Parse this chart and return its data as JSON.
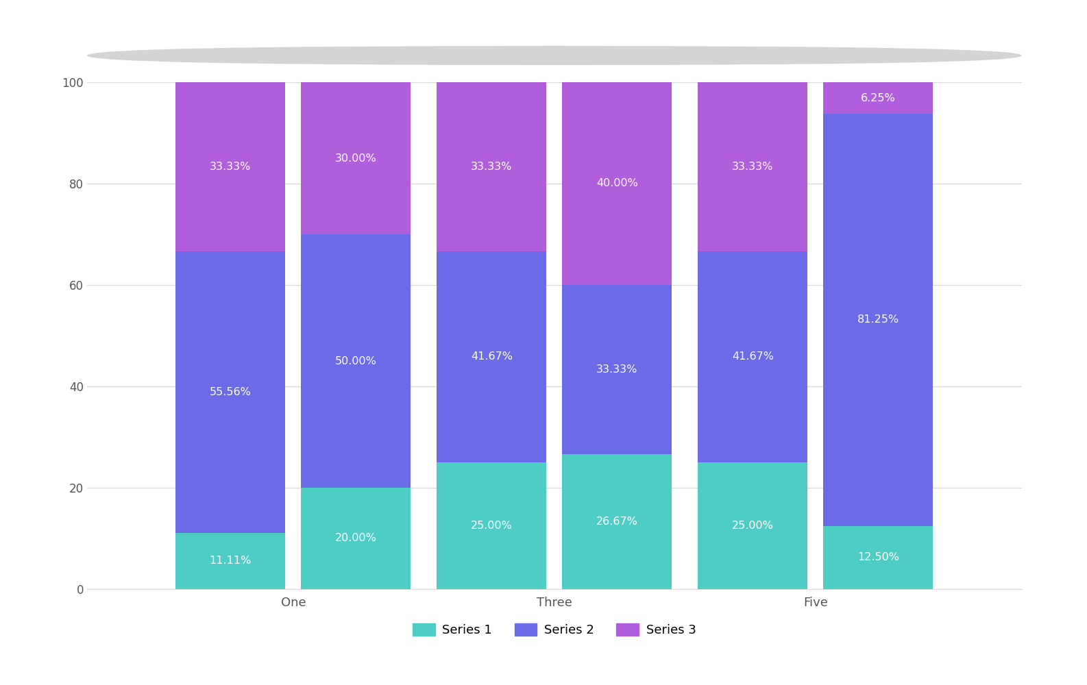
{
  "categories": [
    "One",
    "Three",
    "Five"
  ],
  "series1": [
    11.11,
    20.0,
    25.0,
    26.67,
    25.0,
    12.5
  ],
  "series2": [
    55.56,
    50.0,
    41.67,
    33.33,
    41.67,
    81.25
  ],
  "series3": [
    33.33,
    30.0,
    33.33,
    40.0,
    33.33,
    6.25
  ],
  "series1_label": "Series 1",
  "series2_label": "Series 2",
  "series3_label": "Series 3",
  "color_series1": "#4ECDC4",
  "color_series2": "#6B6BE8",
  "color_series3": "#B05EDB",
  "background_color": "#FFFFFF",
  "text_color": "#555555",
  "ylim": [
    0,
    100
  ],
  "yticks": [
    0,
    20,
    40,
    60,
    80,
    100
  ],
  "grid_color": "#DCDCDC",
  "scrollbar_color": "#D4D4D4"
}
